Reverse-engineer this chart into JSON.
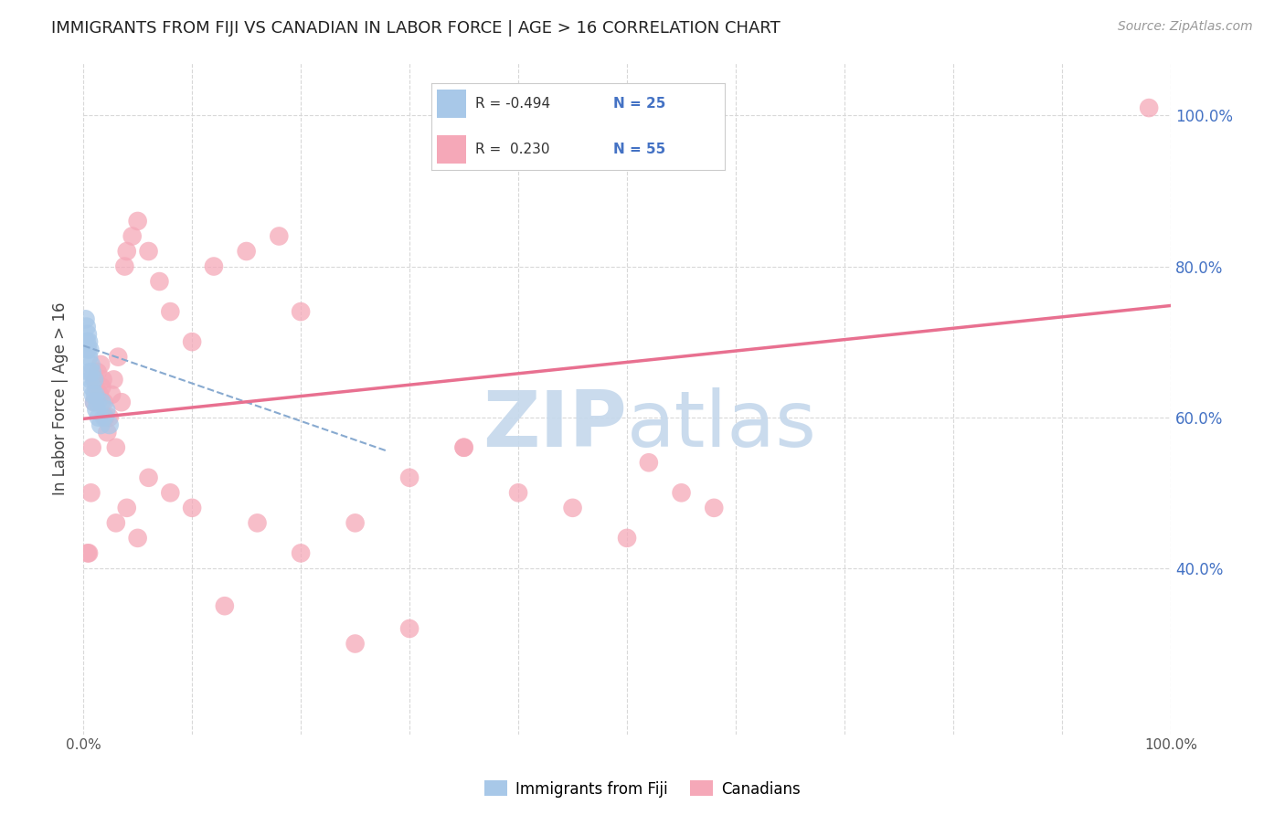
{
  "title": "IMMIGRANTS FROM FIJI VS CANADIAN IN LABOR FORCE | AGE > 16 CORRELATION CHART",
  "source": "Source: ZipAtlas.com",
  "ylabel": "In Labor Force | Age > 16",
  "xlim": [
    0.0,
    1.0
  ],
  "ylim": [
    0.18,
    1.07
  ],
  "yticks": [
    0.4,
    0.6,
    0.8,
    1.0
  ],
  "ytick_labels": [
    "40.0%",
    "60.0%",
    "80.0%",
    "100.0%"
  ],
  "fiji_color": "#a8c8e8",
  "canadian_color": "#f5a8b8",
  "fiji_line_color": "#88aad0",
  "canadian_line_color": "#e87090",
  "fiji_scatter_x": [
    0.002,
    0.003,
    0.003,
    0.004,
    0.004,
    0.005,
    0.005,
    0.006,
    0.006,
    0.007,
    0.007,
    0.008,
    0.008,
    0.009,
    0.01,
    0.01,
    0.011,
    0.012,
    0.013,
    0.014,
    0.016,
    0.017,
    0.019,
    0.021,
    0.024
  ],
  "fiji_scatter_y": [
    0.73,
    0.72,
    0.7,
    0.69,
    0.71,
    0.68,
    0.7,
    0.66,
    0.69,
    0.67,
    0.65,
    0.66,
    0.64,
    0.63,
    0.65,
    0.62,
    0.63,
    0.61,
    0.62,
    0.6,
    0.59,
    0.62,
    0.6,
    0.61,
    0.59
  ],
  "canadian_scatter_x": [
    0.004,
    0.005,
    0.007,
    0.008,
    0.01,
    0.011,
    0.012,
    0.013,
    0.015,
    0.016,
    0.017,
    0.018,
    0.019,
    0.02,
    0.022,
    0.024,
    0.026,
    0.028,
    0.03,
    0.032,
    0.035,
    0.038,
    0.04,
    0.045,
    0.05,
    0.06,
    0.07,
    0.08,
    0.1,
    0.12,
    0.15,
    0.18,
    0.2,
    0.25,
    0.3,
    0.35,
    0.4,
    0.45,
    0.5,
    0.52,
    0.55,
    0.58,
    0.98,
    0.03,
    0.04,
    0.05,
    0.06,
    0.08,
    0.1,
    0.13,
    0.16,
    0.2,
    0.25,
    0.3,
    0.35
  ],
  "canadian_scatter_y": [
    0.42,
    0.42,
    0.5,
    0.56,
    0.62,
    0.65,
    0.64,
    0.66,
    0.63,
    0.67,
    0.64,
    0.65,
    0.62,
    0.6,
    0.58,
    0.6,
    0.63,
    0.65,
    0.56,
    0.68,
    0.62,
    0.8,
    0.82,
    0.84,
    0.86,
    0.82,
    0.78,
    0.74,
    0.7,
    0.8,
    0.82,
    0.84,
    0.74,
    0.46,
    0.52,
    0.56,
    0.5,
    0.48,
    0.44,
    0.54,
    0.5,
    0.48,
    1.01,
    0.46,
    0.48,
    0.44,
    0.52,
    0.5,
    0.48,
    0.35,
    0.46,
    0.42,
    0.3,
    0.32,
    0.56
  ],
  "fiji_trendline_x": [
    0.0,
    0.28
  ],
  "fiji_trendline_y": [
    0.695,
    0.555
  ],
  "canadian_trendline_x": [
    0.0,
    1.0
  ],
  "canadian_trendline_y": [
    0.598,
    0.748
  ],
  "background_color": "#ffffff",
  "grid_color": "#d8d8d8",
  "title_color": "#222222",
  "axis_label_color": "#444444",
  "right_tick_color": "#4472c4",
  "bottom_tick_color": "#555555",
  "watermark_color": "#c5d8ec",
  "legend_r1_text": "R = -0.494",
  "legend_n1_text": "N = 25",
  "legend_r2_text": "R =  0.230",
  "legend_n2_text": "N = 55",
  "legend_text_color": "#4472c4",
  "legend_label_color": "#333333"
}
